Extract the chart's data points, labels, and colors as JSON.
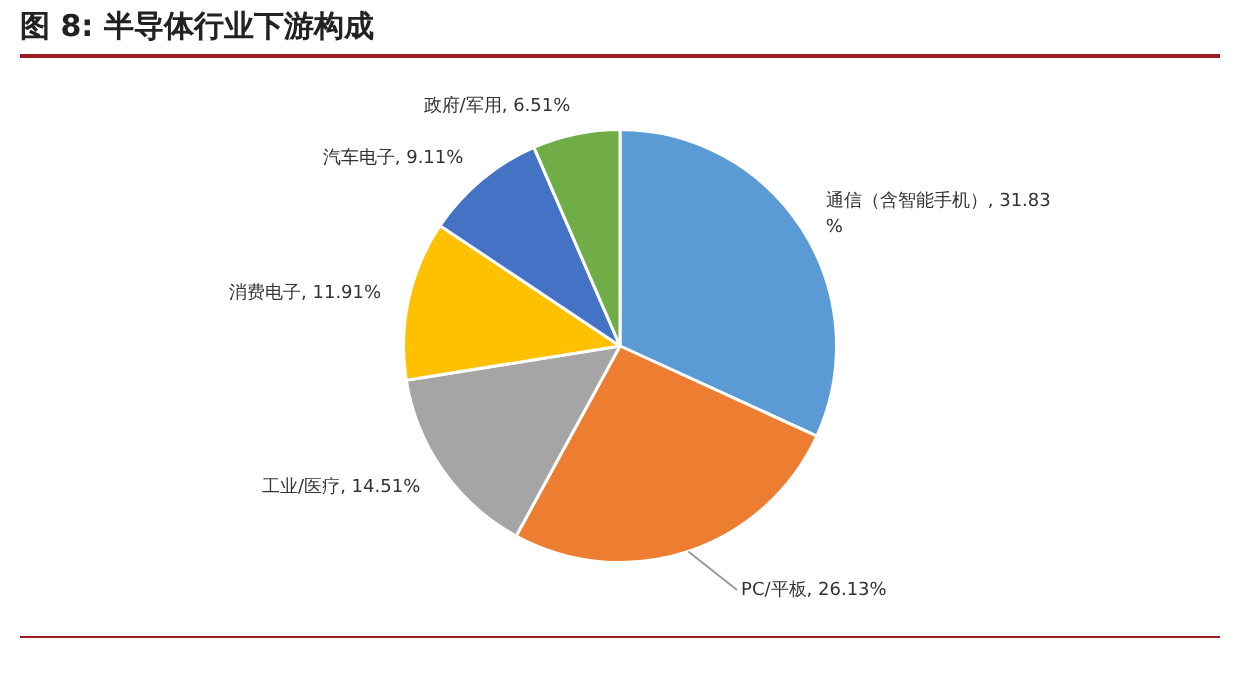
{
  "chart_data": {
    "type": "pie",
    "title": "图 8: 半导体行业下游构成",
    "categories": [
      "通信（含智能手机）",
      "PC/平板",
      "工业/医疗",
      "消费电子",
      "汽车电子",
      "政府/军用"
    ],
    "values": [
      31.83,
      26.13,
      14.51,
      11.91,
      9.11,
      6.51
    ],
    "value_labels": [
      "31.83%",
      "26.13%",
      "14.51%",
      "11.91%",
      "9.11%",
      "6.51%"
    ],
    "colors": [
      "#5b9bd5",
      "#ed7d31",
      "#a5a5a5",
      "#ffc000",
      "#4472c4",
      "#70ad47"
    ],
    "legend": false
  }
}
